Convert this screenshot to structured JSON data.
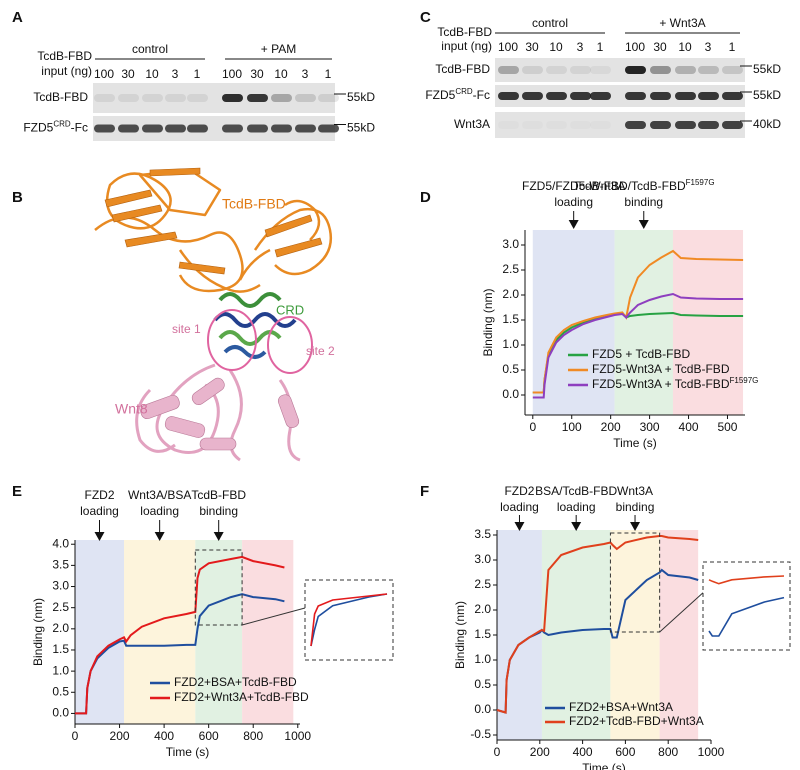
{
  "panels": {
    "A": {
      "letter": "A",
      "input_label": [
        "TcdB-FBD",
        "input (ng)"
      ],
      "groups": [
        {
          "name": "control",
          "lanes": [
            100,
            30,
            10,
            3,
            1
          ]
        },
        {
          "name": "+ PAM",
          "lanes": [
            100,
            30,
            10,
            3,
            1
          ]
        }
      ],
      "rows": [
        {
          "label": "TcdB-FBD",
          "marker": "55kD"
        },
        {
          "label": "FZD5",
          "label_sup": "CRD",
          "label_suffix": "-Fc",
          "marker": "55kD"
        }
      ]
    },
    "B": {
      "letter": "B",
      "labels": {
        "fbd": "TcdB-FBD",
        "crd": "CRD",
        "site1": "site 1",
        "site2": "site 2",
        "wnt8": "Wnt8"
      }
    },
    "C": {
      "letter": "C",
      "input_label": [
        "TcdB-FBD",
        "input (ng)"
      ],
      "groups": [
        {
          "name": "control",
          "lanes": [
            100,
            30,
            10,
            3,
            1
          ]
        },
        {
          "name": "+ Wnt3A",
          "lanes": [
            100,
            30,
            10,
            3,
            1
          ]
        }
      ],
      "rows": [
        {
          "label": "TcdB-FBD",
          "marker": "55kD"
        },
        {
          "label": "FZD5",
          "label_sup": "CRD",
          "label_suffix": "-Fc",
          "marker": "55kD"
        },
        {
          "label": "Wnt3A",
          "marker": "40kD"
        }
      ]
    }
  },
  "chart_data": [
    {
      "panel": "D",
      "type": "line",
      "annotations": [
        {
          "lines": [
            "FZD5/FZD5-Wnt3A",
            "loading"
          ]
        },
        {
          "lines": [
            {
              "text": "TcdB-FBD/TcdB-FBD",
              "sup": "F1597G"
            },
            "binding"
          ]
        }
      ],
      "xlabel": "Time (s)",
      "ylabel": "Binding (nm)",
      "xlim": [
        -20,
        545
      ],
      "ylim": [
        -0.4,
        3.3
      ],
      "xticks": [
        0,
        100,
        200,
        300,
        400,
        500
      ],
      "yticks": [
        {
          "value": 0,
          "label": "0.0"
        },
        0.5,
        {
          "value": 1,
          "label": "1.0"
        },
        1.5,
        {
          "value": 2,
          "label": "2.0"
        },
        2.5,
        {
          "value": 3,
          "label": "3.0"
        }
      ],
      "regions": [
        {
          "from": 0,
          "to": 210,
          "color": "#dfe4f3"
        },
        {
          "from": 210,
          "to": 360,
          "color": "#e1f1e2"
        },
        {
          "from": 360,
          "to": 540,
          "color": "#fadde0"
        }
      ],
      "x": [
        0,
        28,
        30,
        40,
        60,
        80,
        100,
        130,
        160,
        190,
        210,
        230,
        240,
        250,
        270,
        300,
        330,
        360,
        380,
        420,
        480,
        540
      ],
      "series": [
        {
          "name": "FZD5 + TcdB-FBD",
          "color": "#27a243",
          "values": [
            0.05,
            0.05,
            0.3,
            0.8,
            1.1,
            1.25,
            1.35,
            1.45,
            1.52,
            1.58,
            1.62,
            1.64,
            1.55,
            1.58,
            1.6,
            1.62,
            1.63,
            1.64,
            1.6,
            1.59,
            1.58,
            1.58
          ]
        },
        {
          "name": "FZD5-Wnt3A + TcdB-FBD",
          "color": "#f08a24",
          "values": [
            0.05,
            0.05,
            0.3,
            0.85,
            1.15,
            1.3,
            1.4,
            1.48,
            1.55,
            1.6,
            1.63,
            1.65,
            1.55,
            1.95,
            2.35,
            2.6,
            2.75,
            2.88,
            2.74,
            2.72,
            2.71,
            2.7
          ]
        },
        {
          "name": "FZD5-Wnt3A + TcdB-FBD",
          "name_sup": "F1597G",
          "color": "#8e3fbf",
          "values": [
            -0.05,
            -0.05,
            0.2,
            0.75,
            1.05,
            1.2,
            1.3,
            1.42,
            1.5,
            1.56,
            1.6,
            1.62,
            1.55,
            1.65,
            1.8,
            1.9,
            1.97,
            2.02,
            1.95,
            1.93,
            1.92,
            1.92
          ]
        }
      ]
    },
    {
      "panel": "E",
      "type": "line",
      "annotations": [
        {
          "lines": [
            "FZD2",
            "loading"
          ]
        },
        {
          "lines": [
            "Wnt3A/BSA",
            "loading"
          ]
        },
        {
          "lines": [
            "TcdB-FBD",
            "binding"
          ]
        }
      ],
      "xlabel": "Time (s)",
      "ylabel": "Binding (nm)",
      "xlim": [
        0,
        1010
      ],
      "ylim": [
        -0.25,
        4.1
      ],
      "xticks": [
        0,
        200,
        400,
        600,
        800,
        1000
      ],
      "yticks": [
        {
          "value": 0,
          "label": "0.0"
        },
        0.5,
        {
          "value": 1,
          "label": "1.0"
        },
        1.5,
        {
          "value": 2,
          "label": "2.0"
        },
        2.5,
        {
          "value": 3,
          "label": "3.0"
        },
        3.5,
        {
          "value": 4,
          "label": "4.0"
        }
      ],
      "regions": [
        {
          "from": 0,
          "to": 220,
          "color": "#dfe4f3"
        },
        {
          "from": 220,
          "to": 540,
          "color": "#fdf4dc"
        },
        {
          "from": 540,
          "to": 750,
          "color": "#e1f1e2"
        },
        {
          "from": 750,
          "to": 980,
          "color": "#fadde0"
        }
      ],
      "x": [
        0,
        50,
        55,
        70,
        100,
        150,
        200,
        220,
        230,
        250,
        300,
        400,
        500,
        540,
        550,
        560,
        600,
        700,
        750,
        800,
        900,
        940
      ],
      "series": [
        {
          "name": "FZD2+BSA+TcdB-FBD",
          "color": "#1f4e9e",
          "values": [
            0,
            0,
            0.6,
            1.0,
            1.3,
            1.55,
            1.7,
            1.72,
            1.6,
            1.6,
            1.6,
            1.6,
            1.62,
            1.62,
            2.0,
            2.3,
            2.55,
            2.75,
            2.82,
            2.75,
            2.7,
            2.65
          ]
        },
        {
          "name": "FZD2+Wnt3A+TcdB-FBD",
          "color": "#e31a1c",
          "values": [
            0,
            0,
            0.6,
            1.0,
            1.35,
            1.6,
            1.75,
            1.8,
            1.7,
            1.85,
            2.05,
            2.25,
            2.35,
            2.4,
            3.2,
            3.4,
            3.55,
            3.65,
            3.7,
            3.6,
            3.5,
            3.45
          ]
        }
      ]
    },
    {
      "panel": "F",
      "type": "line",
      "annotations": [
        {
          "lines": [
            "FZD2",
            "loading"
          ]
        },
        {
          "lines": [
            "BSA/TcdB-FBD",
            "loading"
          ]
        },
        {
          "lines": [
            "Wnt3A",
            "binding"
          ]
        }
      ],
      "xlabel": "Time (s)",
      "ylabel": "Binding (nm)",
      "xlim": [
        0,
        1000
      ],
      "ylim": [
        -0.6,
        3.6
      ],
      "xticks": [
        0,
        200,
        400,
        600,
        800,
        1000
      ],
      "yticks": [
        -0.5,
        {
          "value": 0,
          "label": "0.0"
        },
        0.5,
        {
          "value": 1,
          "label": "1.0"
        },
        1.5,
        {
          "value": 2,
          "label": "2.0"
        },
        2.5,
        {
          "value": 3,
          "label": "3.0"
        },
        3.5
      ],
      "regions": [
        {
          "from": 0,
          "to": 210,
          "color": "#dfe4f3"
        },
        {
          "from": 210,
          "to": 530,
          "color": "#e1f1e2"
        },
        {
          "from": 530,
          "to": 760,
          "color": "#fdf4dc"
        },
        {
          "from": 760,
          "to": 940,
          "color": "#fadde0"
        }
      ],
      "x": [
        0,
        40,
        45,
        60,
        100,
        150,
        200,
        210,
        220,
        240,
        300,
        400,
        500,
        530,
        540,
        560,
        600,
        700,
        760,
        770,
        800,
        900,
        940
      ],
      "series": [
        {
          "name": "FZD2+BSA+Wnt3A",
          "color": "#1f4e9e",
          "values": [
            0,
            -0.05,
            0.6,
            1.0,
            1.3,
            1.45,
            1.55,
            1.6,
            1.55,
            1.5,
            1.55,
            1.6,
            1.62,
            1.62,
            1.45,
            1.45,
            2.2,
            2.6,
            2.75,
            2.8,
            2.7,
            2.65,
            2.6
          ]
        },
        {
          "name": "FZD2+TcdB-FBD+Wnt3A",
          "color": "#e0401c",
          "values": [
            0,
            -0.05,
            0.6,
            1.0,
            1.3,
            1.45,
            1.58,
            1.6,
            1.58,
            2.8,
            3.1,
            3.25,
            3.32,
            3.35,
            3.3,
            3.22,
            3.35,
            3.45,
            3.48,
            3.48,
            3.45,
            3.42,
            3.4
          ]
        }
      ]
    }
  ]
}
